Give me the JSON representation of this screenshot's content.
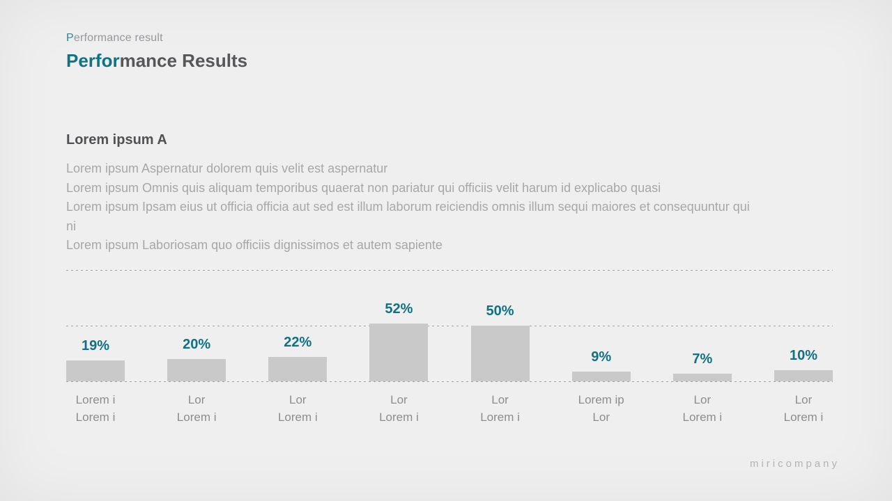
{
  "header": {
    "eyebrow_accent": "P",
    "eyebrow_rest": "erformance result",
    "title_accent": "Perfor",
    "title_rest": "mance Results"
  },
  "section": {
    "heading": "Lorem ipsum A",
    "lines": [
      "Lorem ipsum Aspernatur dolorem quis velit est aspernatur",
      "Lorem ipsum Omnis quis aliquam temporibus quaerat non pariatur qui officiis velit harum id explicabo quasi",
      "Lorem ipsum Ipsam eius ut officia officia aut sed est illum laborum reiciendis omnis illum sequi maiores et consequuntur qui",
      "ni",
      "Lorem ipsum Laboriosam quo officiis dignissimos et autem sapiente"
    ]
  },
  "chart_data": {
    "type": "bar",
    "title": "",
    "xlabel": "",
    "ylabel": "",
    "ylim": [
      0,
      100
    ],
    "gridlines": [
      0,
      50,
      100
    ],
    "grid_style": "dashed-horizontal",
    "legend": false,
    "bar_color": "#c9c9ca",
    "value_label_color": "#0f7183",
    "values": [
      19,
      20,
      22,
      52,
      50,
      9,
      7,
      10
    ],
    "bars": [
      {
        "value": 19,
        "display": "19%",
        "line1": "Lorem i",
        "line2": "Lorem i"
      },
      {
        "value": 20,
        "display": "20%",
        "line1": "Lor",
        "line2": "Lorem i"
      },
      {
        "value": 22,
        "display": "22%",
        "line1": "Lor",
        "line2": "Lorem i"
      },
      {
        "value": 52,
        "display": "52%",
        "line1": "Lor",
        "line2": "Lorem i"
      },
      {
        "value": 50,
        "display": "50%",
        "line1": "Lor",
        "line2": "Lorem i"
      },
      {
        "value": 9,
        "display": "9%",
        "line1": "Lorem ip",
        "line2": "Lor"
      },
      {
        "value": 7,
        "display": "7%",
        "line1": "Lor",
        "line2": "Lorem i"
      },
      {
        "value": 10,
        "display": "10%",
        "line1": "Lor",
        "line2": "Lorem i"
      }
    ]
  },
  "footer": {
    "brand": "miricompany"
  },
  "colors": {
    "background": "#efeff0",
    "accent_teal": "#0f7183",
    "title_gray": "#57575a",
    "body_gray": "#a7a7a9",
    "category_gray": "#8d8d90",
    "bar_gray": "#c9c9ca",
    "grid_gray": "#a2a2a4",
    "footer_gray": "#b5b2b7"
  }
}
